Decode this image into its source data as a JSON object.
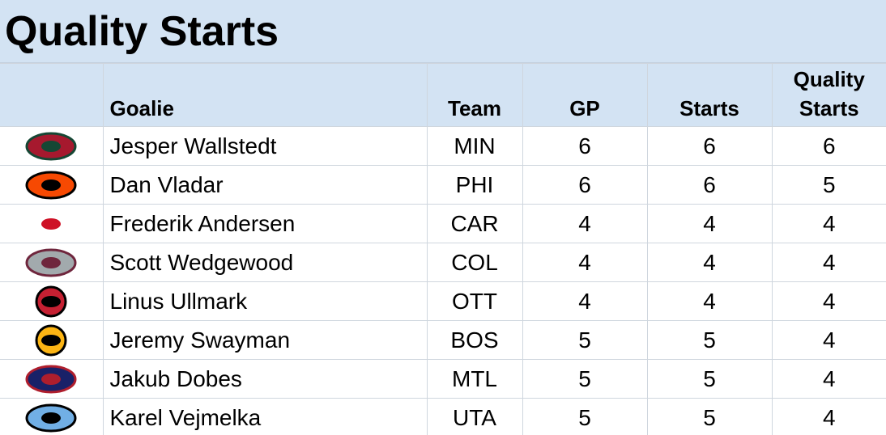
{
  "header": {
    "title": "Quality Starts"
  },
  "table": {
    "columns": [
      "Goalie",
      "Team",
      "GP",
      "Starts",
      "Quality Starts"
    ],
    "rows": [
      [
        "Jesper Wallstedt",
        "MIN",
        6,
        6,
        6
      ],
      [
        "Dan Vladar",
        "PHI",
        6,
        6,
        5
      ],
      [
        "Frederik Andersen",
        "CAR",
        4,
        4,
        4
      ],
      [
        "Scott Wedgewood",
        "COL",
        4,
        4,
        4
      ],
      [
        "Linus Ullmark",
        "OTT",
        4,
        4,
        4
      ],
      [
        "Jeremy Swayman",
        "BOS",
        5,
        5,
        4
      ],
      [
        "Jakub Dobes",
        "MTL",
        5,
        5,
        4
      ],
      [
        "Karel Vejmelka",
        "UTA",
        5,
        5,
        4
      ]
    ]
  }
}
